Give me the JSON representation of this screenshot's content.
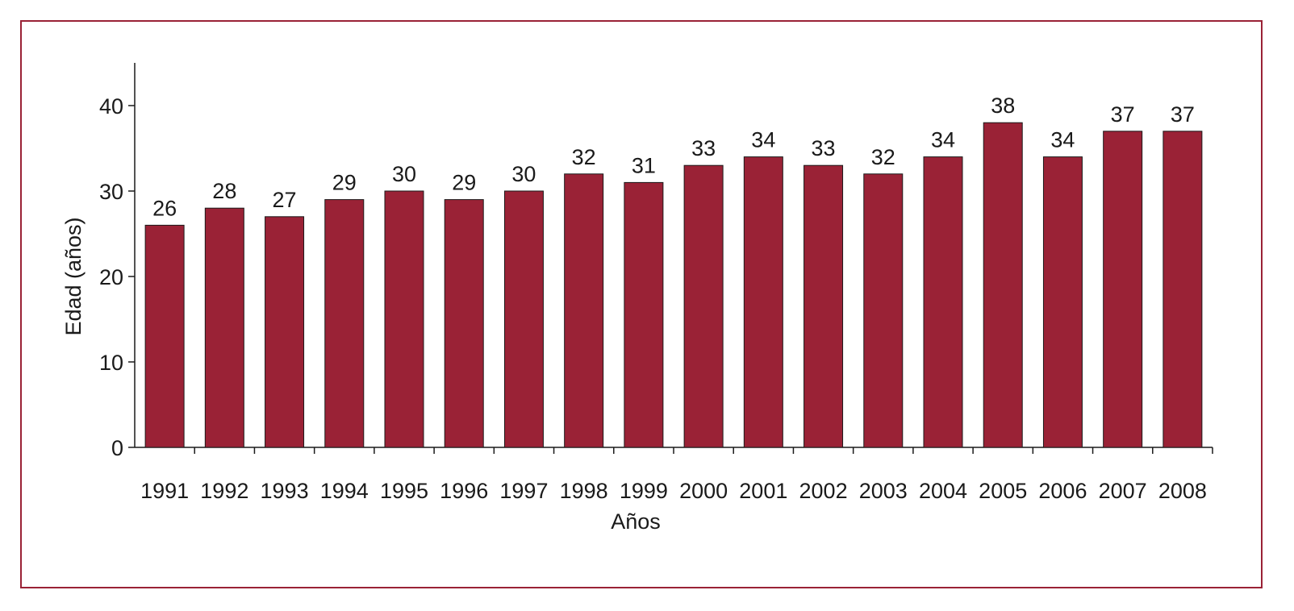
{
  "chart_data": {
    "type": "bar",
    "title": "",
    "xlabel": "Años",
    "ylabel": "Edad (años)",
    "ylim": [
      0,
      45
    ],
    "yticks": [
      0,
      10,
      20,
      30,
      40
    ],
    "yticks_labels": [
      "0",
      "10",
      "20",
      "30",
      "40"
    ],
    "categories": [
      "1991",
      "1992",
      "1993",
      "1994",
      "1995",
      "1996",
      "1997",
      "1998",
      "1999",
      "2000",
      "2001",
      "2002",
      "2003",
      "2004",
      "2005",
      "2006",
      "2007",
      "2008"
    ],
    "values": [
      26,
      28,
      27,
      29,
      30,
      29,
      30,
      32,
      31,
      33,
      34,
      33,
      32,
      34,
      38,
      34,
      37,
      37
    ],
    "value_labels": [
      "26",
      "28",
      "27",
      "29",
      "30",
      "29",
      "30",
      "32",
      "31",
      "33",
      "34",
      "33",
      "32",
      "34",
      "38",
      "34",
      "37",
      "37"
    ],
    "grid": false,
    "legend": "none",
    "bar_color": "#9a2236",
    "frame_color": "#9a2236"
  }
}
